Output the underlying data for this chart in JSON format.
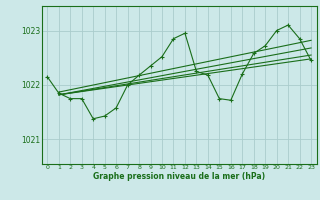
{
  "background_color": "#cce8e8",
  "grid_color": "#aacccc",
  "line_color": "#1a6e1a",
  "text_color": "#1a6e1a",
  "xlabel": "Graphe pression niveau de la mer (hPa)",
  "ylim": [
    1020.55,
    1023.45
  ],
  "xlim": [
    -0.5,
    23.5
  ],
  "yticks": [
    1021,
    1022,
    1023
  ],
  "xticks": [
    0,
    1,
    2,
    3,
    4,
    5,
    6,
    7,
    8,
    9,
    10,
    11,
    12,
    13,
    14,
    15,
    16,
    17,
    18,
    19,
    20,
    21,
    22,
    23
  ],
  "main_data": [
    [
      0,
      1022.15
    ],
    [
      1,
      1021.85
    ],
    [
      2,
      1021.75
    ],
    [
      3,
      1021.75
    ],
    [
      4,
      1021.38
    ],
    [
      5,
      1021.43
    ],
    [
      6,
      1021.58
    ],
    [
      7,
      1022.0
    ],
    [
      8,
      1022.18
    ],
    [
      9,
      1022.35
    ],
    [
      10,
      1022.52
    ],
    [
      11,
      1022.85
    ],
    [
      12,
      1022.95
    ],
    [
      13,
      1022.25
    ],
    [
      14,
      1022.18
    ],
    [
      15,
      1021.75
    ],
    [
      16,
      1021.72
    ],
    [
      17,
      1022.2
    ],
    [
      18,
      1022.58
    ],
    [
      19,
      1022.72
    ],
    [
      20,
      1023.0
    ],
    [
      21,
      1023.1
    ],
    [
      22,
      1022.85
    ],
    [
      23,
      1022.45
    ]
  ],
  "straight_lines": [
    [
      [
        1,
        1021.87
      ],
      [
        23,
        1022.82
      ]
    ],
    [
      [
        1,
        1021.82
      ],
      [
        23,
        1022.68
      ]
    ],
    [
      [
        1,
        1021.82
      ],
      [
        23,
        1022.55
      ]
    ],
    [
      [
        1,
        1021.82
      ],
      [
        23,
        1022.48
      ]
    ]
  ]
}
